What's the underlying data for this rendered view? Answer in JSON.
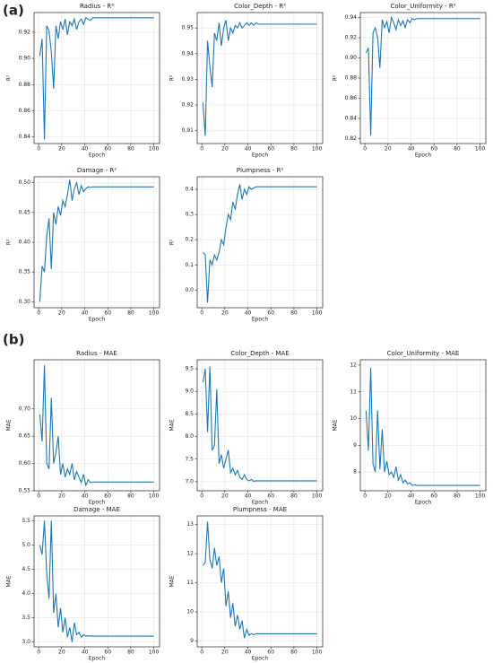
{
  "figure_labels": [
    "(a)",
    "(b)"
  ],
  "chart_data": [
    {
      "type": "line",
      "title": "Radius - R²",
      "xlabel": "Epoch",
      "ylabel": "R²",
      "color": "#1f77b4",
      "grid": true,
      "x": [
        1,
        3,
        5,
        7,
        9,
        11,
        13,
        15,
        17,
        19,
        21,
        23,
        25,
        27,
        29,
        31,
        33,
        35,
        37,
        39,
        41,
        43,
        45,
        47,
        49,
        51,
        53,
        55,
        57,
        59,
        100
      ],
      "values": [
        0.902,
        0.915,
        0.838,
        0.925,
        0.921,
        0.905,
        0.877,
        0.925,
        0.915,
        0.928,
        0.922,
        0.93,
        0.918,
        0.928,
        0.925,
        0.93,
        0.922,
        0.928,
        0.93,
        0.926,
        0.931,
        0.93,
        0.929,
        0.931,
        0.931,
        0.931,
        0.931,
        0.931,
        0.931,
        0.931,
        0.931
      ],
      "xlim": [
        -4,
        105
      ],
      "ylim": [
        0.835,
        0.935
      ],
      "xticks": [
        0,
        20,
        40,
        60,
        80,
        100
      ],
      "yticks": [
        0.84,
        0.86,
        0.88,
        {
          "value": 0.9,
          "label": "0.90"
        },
        0.92
      ]
    },
    {
      "type": "line",
      "title": "Color_Depth - R²",
      "xlabel": "Epoch",
      "ylabel": "R²",
      "color": "#1f77b4",
      "grid": true,
      "x": [
        1,
        3,
        5,
        7,
        9,
        11,
        13,
        15,
        17,
        19,
        21,
        23,
        25,
        27,
        29,
        31,
        33,
        35,
        37,
        39,
        41,
        43,
        45,
        47,
        49,
        51,
        53,
        55,
        57,
        59,
        100
      ],
      "values": [
        0.921,
        0.908,
        0.945,
        0.935,
        0.927,
        0.948,
        0.945,
        0.952,
        0.943,
        0.95,
        0.953,
        0.945,
        0.95,
        0.948,
        0.951,
        0.95,
        0.952,
        0.95,
        0.951,
        0.952,
        0.951,
        0.952,
        0.951,
        0.952,
        0.9515,
        0.9515,
        0.9515,
        0.9515,
        0.9515,
        0.9515,
        0.9515
      ],
      "xlim": [
        -4,
        105
      ],
      "ylim": [
        0.905,
        0.956
      ],
      "xticks": [
        0,
        20,
        40,
        60,
        80,
        100
      ],
      "yticks": [
        0.91,
        0.92,
        0.93,
        0.94,
        0.95
      ]
    },
    {
      "type": "line",
      "title": "Color_Uniformity - R²",
      "xlabel": "Epoch",
      "ylabel": "R²",
      "color": "#1f77b4",
      "grid": true,
      "x": [
        1,
        3,
        5,
        7,
        9,
        11,
        13,
        15,
        17,
        19,
        21,
        23,
        25,
        27,
        29,
        31,
        33,
        35,
        37,
        39,
        41,
        43,
        45,
        47,
        49,
        51,
        53,
        55,
        57,
        59,
        100
      ],
      "values": [
        0.905,
        0.91,
        0.823,
        0.925,
        0.93,
        0.92,
        0.89,
        0.938,
        0.93,
        0.936,
        0.925,
        0.94,
        0.935,
        0.928,
        0.938,
        0.932,
        0.937,
        0.93,
        0.938,
        0.935,
        0.939,
        0.938,
        0.939,
        0.939,
        0.939,
        0.939,
        0.939,
        0.939,
        0.939,
        0.939,
        0.939
      ],
      "xlim": [
        -4,
        105
      ],
      "ylim": [
        0.815,
        0.945
      ],
      "xticks": [
        0,
        20,
        40,
        60,
        80,
        100
      ],
      "yticks": [
        0.82,
        0.84,
        0.86,
        0.88,
        {
          "value": 0.9,
          "label": "0.90"
        },
        0.92,
        0.94
      ]
    },
    {
      "type": "line",
      "title": "Damage - R²",
      "xlabel": "Epoch",
      "ylabel": "R²",
      "color": "#1f77b4",
      "grid": true,
      "x": [
        1,
        3,
        5,
        7,
        9,
        11,
        13,
        15,
        17,
        19,
        21,
        23,
        25,
        27,
        29,
        31,
        33,
        35,
        37,
        39,
        41,
        43,
        45,
        47,
        49,
        51,
        53,
        55,
        57,
        59,
        100
      ],
      "values": [
        0.3,
        0.36,
        0.35,
        0.41,
        0.44,
        0.355,
        0.45,
        0.43,
        0.46,
        0.445,
        0.47,
        0.46,
        0.48,
        0.505,
        0.47,
        0.49,
        0.5,
        0.48,
        0.495,
        0.485,
        0.49,
        0.493,
        0.492,
        0.493,
        0.493,
        0.493,
        0.493,
        0.493,
        0.493,
        0.493,
        0.493
      ],
      "xlim": [
        -4,
        105
      ],
      "ylim": [
        0.29,
        0.51
      ],
      "xticks": [
        0,
        20,
        40,
        60,
        80,
        100
      ],
      "yticks": [
        {
          "value": 0.3,
          "label": "0.30"
        },
        0.35,
        {
          "value": 0.4,
          "label": "0.40"
        },
        0.45,
        {
          "value": 0.5,
          "label": "0.50"
        }
      ]
    },
    {
      "type": "line",
      "title": "Plumpness - R²",
      "xlabel": "Epoch",
      "ylabel": "R²",
      "color": "#1f77b4",
      "grid": true,
      "x": [
        1,
        3,
        5,
        7,
        9,
        11,
        13,
        15,
        17,
        19,
        21,
        23,
        25,
        27,
        29,
        31,
        33,
        35,
        37,
        39,
        41,
        43,
        45,
        47,
        49,
        51,
        53,
        55,
        57,
        59,
        100
      ],
      "values": [
        0.15,
        0.14,
        -0.05,
        0.12,
        0.1,
        0.14,
        0.12,
        0.15,
        0.2,
        0.18,
        0.25,
        0.3,
        0.28,
        0.35,
        0.32,
        0.38,
        0.42,
        0.36,
        0.4,
        0.38,
        0.41,
        0.4,
        0.405,
        0.41,
        0.41,
        0.41,
        0.41,
        0.41,
        0.41,
        0.41,
        0.41
      ],
      "xlim": [
        -4,
        105
      ],
      "ylim": [
        -0.07,
        0.45
      ],
      "xticks": [
        0,
        20,
        40,
        60,
        80,
        100
      ],
      "yticks": [
        {
          "value": 0,
          "label": "0.0"
        },
        0.1,
        0.2,
        0.3,
        0.4
      ]
    },
    {
      "type": "line",
      "title": "Radius - MAE",
      "xlabel": "Epoch",
      "ylabel": "MAE",
      "color": "#1f77b4",
      "grid": true,
      "x": [
        1,
        3,
        5,
        7,
        9,
        11,
        13,
        15,
        17,
        19,
        21,
        23,
        25,
        27,
        29,
        31,
        33,
        35,
        37,
        39,
        41,
        43,
        45,
        47,
        49,
        51,
        53,
        55,
        57,
        59,
        100
      ],
      "values": [
        0.69,
        0.64,
        0.78,
        0.6,
        0.59,
        0.72,
        0.6,
        0.62,
        0.65,
        0.58,
        0.6,
        0.575,
        0.59,
        0.58,
        0.6,
        0.57,
        0.585,
        0.575,
        0.565,
        0.58,
        0.56,
        0.57,
        0.565,
        0.566,
        0.566,
        0.566,
        0.566,
        0.566,
        0.566,
        0.566,
        0.566
      ],
      "xlim": [
        -4,
        105
      ],
      "ylim": [
        0.55,
        0.79
      ],
      "xticks": [
        0,
        20,
        40,
        60,
        80,
        100
      ],
      "yticks": [
        0.55,
        {
          "value": 0.6,
          "label": "0.60"
        },
        0.65,
        {
          "value": 0.7,
          "label": "0.70"
        }
      ]
    },
    {
      "type": "line",
      "title": "Color_Depth - MAE",
      "xlabel": "Epoch",
      "ylabel": "MAE",
      "color": "#1f77b4",
      "grid": true,
      "x": [
        1,
        3,
        5,
        7,
        9,
        11,
        13,
        15,
        17,
        19,
        21,
        23,
        25,
        27,
        29,
        31,
        33,
        35,
        37,
        39,
        41,
        43,
        45,
        47,
        49,
        51,
        53,
        55,
        57,
        59,
        100
      ],
      "values": [
        9.2,
        9.5,
        8.1,
        9.55,
        7.7,
        7.8,
        9.05,
        7.4,
        7.6,
        7.3,
        7.5,
        7.7,
        7.2,
        7.3,
        7.15,
        7.25,
        7.1,
        7.05,
        7.15,
        7.05,
        7.02,
        7.05,
        7.01,
        7.02,
        7.02,
        7.02,
        7.02,
        7.02,
        7.02,
        7.02,
        7.02
      ],
      "xlim": [
        -4,
        105
      ],
      "ylim": [
        6.8,
        9.7
      ],
      "xticks": [
        0,
        20,
        40,
        60,
        80,
        100
      ],
      "yticks": [
        {
          "value": 7,
          "label": "7.0"
        },
        7.5,
        {
          "value": 8,
          "label": "8.0"
        },
        8.5,
        {
          "value": 9,
          "label": "9.0"
        },
        9.5
      ]
    },
    {
      "type": "line",
      "title": "Color_Uniformity - MAE",
      "xlabel": "Epoch",
      "ylabel": "MAE",
      "color": "#1f77b4",
      "grid": true,
      "x": [
        1,
        3,
        5,
        7,
        9,
        11,
        13,
        15,
        17,
        19,
        21,
        23,
        25,
        27,
        29,
        31,
        33,
        35,
        37,
        39,
        41,
        43,
        45,
        47,
        49,
        51,
        53,
        55,
        57,
        59,
        100
      ],
      "values": [
        10.3,
        8.8,
        11.9,
        8.3,
        8.0,
        10.3,
        8.1,
        9.6,
        8.0,
        8.4,
        7.9,
        8.0,
        7.8,
        8.2,
        7.7,
        7.9,
        7.6,
        7.7,
        7.55,
        7.6,
        7.5,
        7.52,
        7.5,
        7.5,
        7.5,
        7.5,
        7.5,
        7.5,
        7.5,
        7.5,
        7.5
      ],
      "xlim": [
        -4,
        105
      ],
      "ylim": [
        7.3,
        12.2
      ],
      "xticks": [
        0,
        20,
        40,
        60,
        80,
        100
      ],
      "yticks": [
        8,
        9,
        10,
        11,
        12
      ]
    },
    {
      "type": "line",
      "title": "Damage - MAE",
      "xlabel": "Epoch",
      "ylabel": "MAE",
      "color": "#1f77b4",
      "grid": true,
      "x": [
        1,
        3,
        5,
        7,
        9,
        11,
        13,
        15,
        17,
        19,
        21,
        23,
        25,
        27,
        29,
        31,
        33,
        35,
        37,
        39,
        41,
        43,
        45,
        47,
        49,
        51,
        53,
        55,
        57,
        59,
        100
      ],
      "values": [
        5.0,
        4.8,
        5.5,
        4.4,
        3.9,
        5.5,
        3.6,
        4.0,
        3.3,
        3.7,
        3.2,
        3.5,
        3.1,
        3.3,
        3.0,
        3.4,
        3.15,
        3.2,
        3.1,
        3.15,
        3.12,
        3.13,
        3.12,
        3.12,
        3.12,
        3.12,
        3.12,
        3.12,
        3.12,
        3.12,
        3.12
      ],
      "xlim": [
        -4,
        105
      ],
      "ylim": [
        2.9,
        5.6
      ],
      "xticks": [
        0,
        20,
        40,
        60,
        80,
        100
      ],
      "yticks": [
        {
          "value": 3,
          "label": "3.0"
        },
        3.5,
        {
          "value": 4,
          "label": "4.0"
        },
        4.5,
        {
          "value": 5,
          "label": "5.0"
        },
        5.5
      ]
    },
    {
      "type": "line",
      "title": "Plumpness - MAE",
      "xlabel": "Epoch",
      "ylabel": "MAE",
      "color": "#1f77b4",
      "grid": true,
      "x": [
        1,
        3,
        5,
        7,
        9,
        11,
        13,
        15,
        17,
        19,
        21,
        23,
        25,
        27,
        29,
        31,
        33,
        35,
        37,
        39,
        41,
        43,
        45,
        47,
        49,
        51,
        53,
        55,
        57,
        59,
        100
      ],
      "values": [
        11.6,
        11.7,
        13.1,
        11.8,
        11.5,
        12.2,
        11.6,
        11.9,
        11.0,
        11.5,
        10.2,
        10.7,
        9.8,
        10.3,
        9.5,
        9.9,
        9.4,
        9.7,
        9.1,
        9.4,
        9.2,
        9.25,
        9.22,
        9.25,
        9.25,
        9.25,
        9.25,
        9.25,
        9.25,
        9.25,
        9.25
      ],
      "xlim": [
        -4,
        105
      ],
      "ylim": [
        8.8,
        13.3
      ],
      "xticks": [
        0,
        20,
        40,
        60,
        80,
        100
      ],
      "yticks": [
        9,
        10,
        11,
        12,
        13
      ]
    }
  ]
}
